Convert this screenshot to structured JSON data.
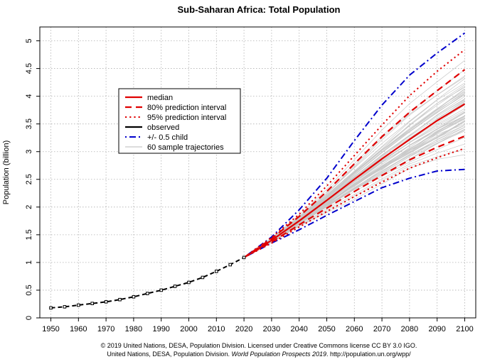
{
  "chart_data": {
    "type": "line",
    "title": "Sub-Saharan Africa: Total Population",
    "xlabel": "",
    "ylabel": "Population (billion)",
    "xlim": [
      1946,
      2104
    ],
    "ylim": [
      0,
      5.25
    ],
    "grid": true,
    "legend_position": "top-left",
    "x_ticks": [
      1950,
      1960,
      1970,
      1980,
      1990,
      2000,
      2010,
      2020,
      2030,
      2040,
      2050,
      2060,
      2070,
      2080,
      2090,
      2100
    ],
    "y_ticks": [
      0,
      0.5,
      1,
      1.5,
      2,
      2.5,
      3,
      3.5,
      4,
      4.5,
      5
    ],
    "y_tick_labels": [
      "0",
      "0.5",
      "1",
      "1.5",
      "2",
      "2.5",
      "3",
      "3.5",
      "4",
      "4.5",
      "5"
    ],
    "observed": {
      "name": "observed",
      "x": [
        1950,
        1955,
        1960,
        1965,
        1970,
        1975,
        1980,
        1985,
        1990,
        1995,
        2000,
        2005,
        2010,
        2015,
        2020
      ],
      "values": [
        0.18,
        0.2,
        0.23,
        0.26,
        0.29,
        0.33,
        0.38,
        0.44,
        0.5,
        0.57,
        0.64,
        0.73,
        0.84,
        0.96,
        1.09
      ]
    },
    "x_projection": [
      2020,
      2030,
      2040,
      2050,
      2060,
      2070,
      2080,
      2090,
      2100
    ],
    "series": [
      {
        "name": "median",
        "color": "#e00000",
        "style": "solid",
        "values": [
          1.09,
          1.4,
          1.75,
          2.12,
          2.5,
          2.87,
          3.22,
          3.56,
          3.86
        ]
      },
      {
        "name": "80% prediction interval",
        "color": "#e00000",
        "style": "dashed",
        "values_upper": [
          1.09,
          1.43,
          1.83,
          2.28,
          2.78,
          3.27,
          3.71,
          4.1,
          4.48
        ],
        "values_lower": [
          1.09,
          1.37,
          1.68,
          1.98,
          2.28,
          2.57,
          2.85,
          3.08,
          3.28
        ]
      },
      {
        "name": "95% prediction interval",
        "color": "#e00000",
        "style": "dotted",
        "values_upper": [
          1.09,
          1.45,
          1.87,
          2.38,
          2.93,
          3.48,
          4.01,
          4.45,
          4.84
        ],
        "values_lower": [
          1.09,
          1.35,
          1.64,
          1.92,
          2.19,
          2.45,
          2.7,
          2.89,
          3.06
        ]
      },
      {
        "name": "observed",
        "color": "#000000",
        "style": "dashed-black"
      },
      {
        "name": "+/- 0.5 child",
        "color": "#0000cc",
        "style": "dotdash",
        "values_upper": [
          1.09,
          1.46,
          1.95,
          2.52,
          3.2,
          3.84,
          4.38,
          4.78,
          5.14
        ],
        "values_lower": [
          1.09,
          1.35,
          1.59,
          1.85,
          2.1,
          2.35,
          2.52,
          2.65,
          2.68
        ]
      },
      {
        "name": "60 sample trajectories",
        "color": "#c8c8c8",
        "style": "thin"
      }
    ],
    "colors": {
      "median": "#e00000",
      "interval_80": "#e00000",
      "interval_95": "#e00000",
      "observed": "#000000",
      "half_child": "#0000cc",
      "trajectories": "#c8c8c8"
    }
  },
  "credits": {
    "line1": "© 2019 United Nations, DESA, Population Division. Licensed under Creative Commons license CC BY 3.0 IGO.",
    "line2_prefix": "United Nations, DESA, Population Division. ",
    "line2_italic": "World Population Prospects 2019",
    "line2_suffix": ". http://population.un.org/wpp/"
  }
}
